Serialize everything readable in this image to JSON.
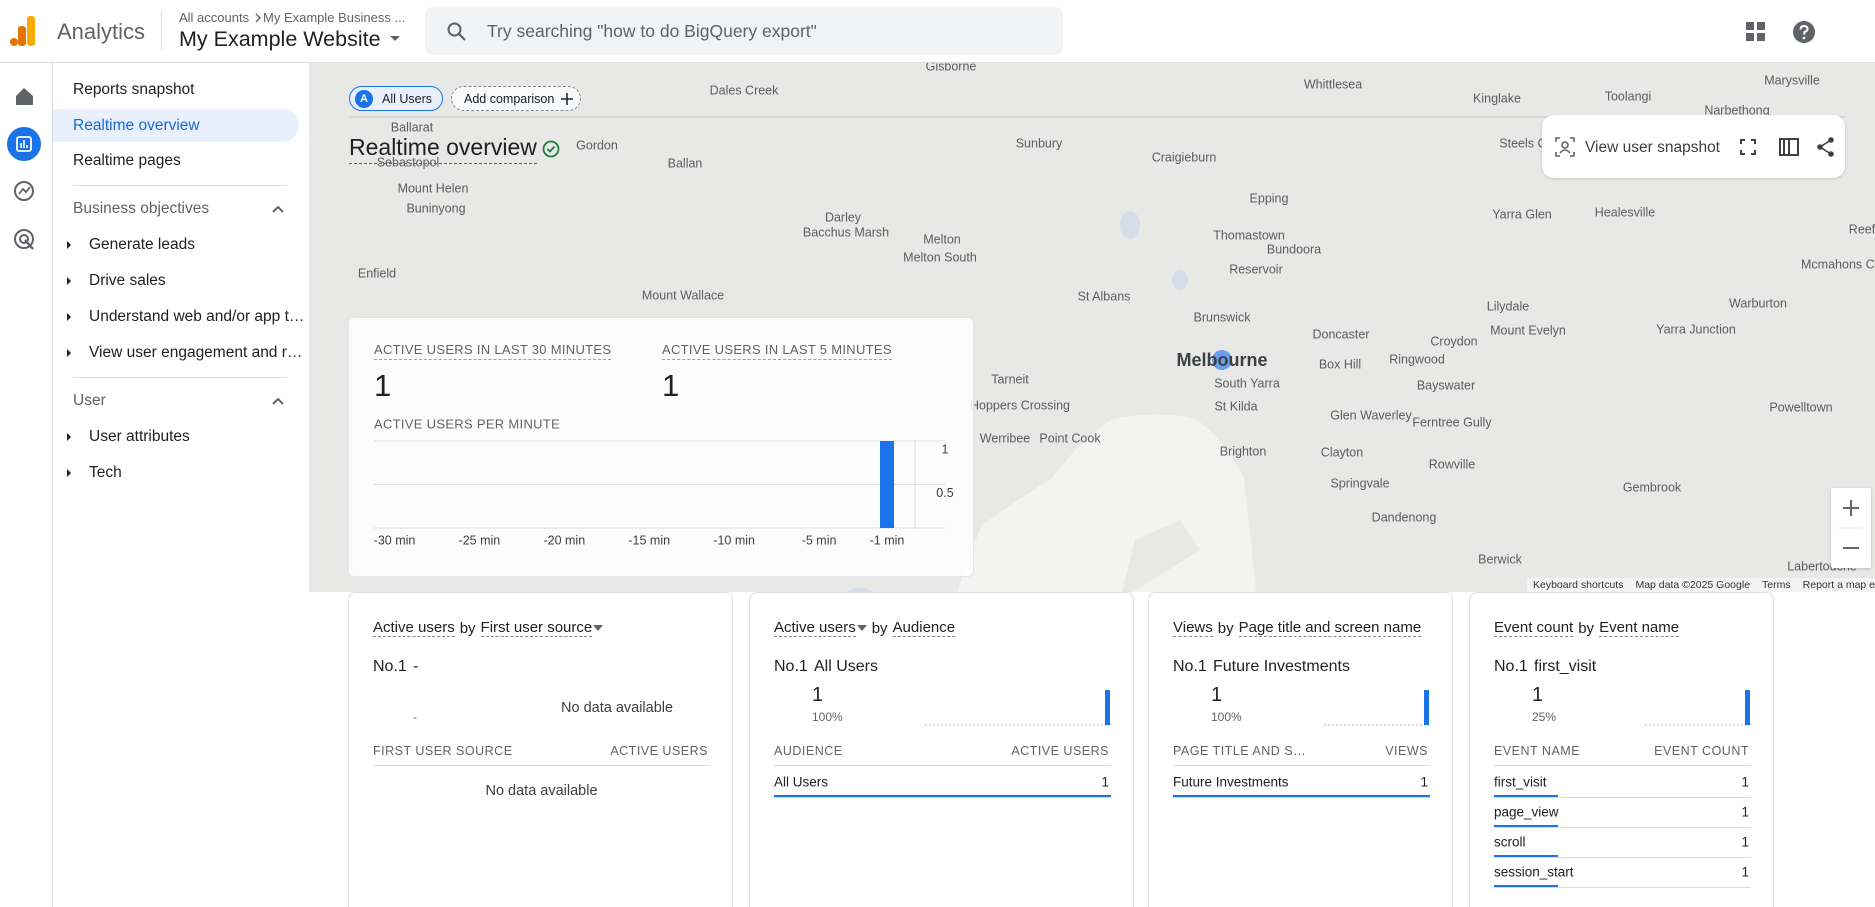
{
  "header": {
    "product": "Analytics",
    "breadcrumb": [
      "All accounts",
      "My Example Business ..."
    ],
    "property": "My Example Website",
    "search_placeholder": "Try searching \"how to do BigQuery export\""
  },
  "nav": {
    "top_items": [
      "Reports snapshot",
      "Realtime overview",
      "Realtime pages"
    ],
    "sections": [
      {
        "title": "Business objectives",
        "items": [
          "Generate leads",
          "Drive sales",
          "Understand web and/or app t…",
          "View user engagement and r…"
        ]
      },
      {
        "title": "User",
        "items": [
          "User attributes",
          "Tech"
        ]
      }
    ]
  },
  "page": {
    "title": "Realtime overview",
    "chip_letter": "A",
    "comparison_chip": "All Users",
    "add_comparison": "Add comparison",
    "snapshot_button": "View user snapshot"
  },
  "map": {
    "places": [
      "Gisborne",
      "Dales Creek",
      "Whittlesea",
      "Kinglake",
      "Toolangi",
      "Marysville",
      "Narbethong",
      "Ballarat",
      "Gordon",
      "Sebastopol",
      "Ballan",
      "Sunbury",
      "Craigieburn",
      "Steels Cr",
      "Mount Helen",
      "Buninyong",
      "Epping",
      "Healesville",
      "Yarra Glen",
      "Darley",
      "Bacchus Marsh",
      "Melton",
      "Melton South",
      "Thomastown",
      "Bundoora",
      "Enfield",
      "Reservoir",
      "Mount Wallace",
      "St Albans",
      "Lilydale",
      "Warburton",
      "Brunswick",
      "Doncaster",
      "Croydon",
      "Mount Evelyn",
      "Yarra Junction",
      "Box Hill",
      "Ringwood",
      "Tarneit",
      "South Yarra",
      "Bayswater",
      "Hoppers Crossing",
      "St Kilda",
      "Glen Waverley",
      "Ferntree Gully",
      "Powelltown",
      "Werribee",
      "Point Cook",
      "Brighton",
      "Clayton",
      "Rowville",
      "Springvale",
      "Gembrook",
      "Dandenong",
      "Berwick",
      "Labertouche",
      "Reef",
      "Mcmahons Creek"
    ],
    "highlight": "Melbourne",
    "footer": [
      "Keyboard shortcuts",
      "Map data ©2025 Google",
      "Terms",
      "Report a map error"
    ]
  },
  "summary": {
    "metrics": [
      {
        "label": "ACTIVE USERS IN LAST 30 MINUTES",
        "value": 1
      },
      {
        "label": "ACTIVE USERS IN LAST 5 MINUTES",
        "value": 1
      }
    ],
    "chart_data": {
      "type": "bar",
      "title": "ACTIVE USERS PER MINUTE",
      "color": "#1a73e8",
      "x": [
        -30,
        -29,
        -28,
        -27,
        -26,
        -25,
        -24,
        -23,
        -22,
        -21,
        -20,
        -19,
        -18,
        -17,
        -16,
        -15,
        -14,
        -13,
        -12,
        -11,
        -10,
        -9,
        -8,
        -7,
        -6,
        -5,
        -4,
        -3,
        -2,
        -1
      ],
      "values": [
        0,
        0,
        0,
        0,
        0,
        0,
        0,
        0,
        0,
        0,
        0,
        0,
        0,
        0,
        0,
        0,
        0,
        0,
        0,
        0,
        0,
        0,
        0,
        0,
        0,
        0,
        0,
        0,
        0,
        1
      ],
      "xlim": [
        -30,
        -1
      ],
      "xticks": [
        {
          "value": -30,
          "label": "-30 min"
        },
        {
          "value": -25,
          "label": "-25 min"
        },
        {
          "value": -20,
          "label": "-20 min"
        },
        {
          "value": -15,
          "label": "-15 min"
        },
        {
          "value": -10,
          "label": "-10 min"
        },
        {
          "value": -5,
          "label": "-5 min"
        },
        {
          "value": -1,
          "label": "-1 min"
        }
      ],
      "ylim": [
        0,
        1
      ],
      "yticks": [
        0.5,
        1
      ],
      "grid": true
    }
  },
  "cards": [
    {
      "metric": "Active users",
      "by": "by",
      "dimension": "First user source",
      "rank": "No.1",
      "top_label": "-",
      "top_share": "-",
      "chart_empty": "No data available",
      "columns": [
        "FIRST USER SOURCE",
        "ACTIVE USERS"
      ],
      "rows": [],
      "table_empty": "No data available"
    },
    {
      "metric": "Active users",
      "by": "by",
      "dimension": "Audience",
      "rank": "No.1",
      "top_label": "All Users",
      "top_value": 1,
      "top_share": "100%",
      "columns": [
        "AUDIENCE",
        "ACTIVE USERS"
      ],
      "rows": [
        [
          "All Users",
          1
        ]
      ]
    },
    {
      "metric": "Views",
      "by": "by",
      "dimension": "Page title and screen name",
      "rank": "No.1",
      "top_label": "Future Investments",
      "top_value": 1,
      "top_share": "100%",
      "columns": [
        "PAGE TITLE AND S…",
        "VIEWS"
      ],
      "rows": [
        [
          "Future Investments",
          1
        ]
      ]
    },
    {
      "metric": "Event count",
      "by": "by",
      "dimension": "Event name",
      "rank": "No.1",
      "top_label": "first_visit",
      "top_value": 1,
      "top_share": "25%",
      "columns": [
        "EVENT NAME",
        "EVENT COUNT"
      ],
      "rows": [
        [
          "first_visit",
          1
        ],
        [
          "page_view",
          1
        ],
        [
          "scroll",
          1
        ],
        [
          "session_start",
          1
        ]
      ]
    }
  ]
}
